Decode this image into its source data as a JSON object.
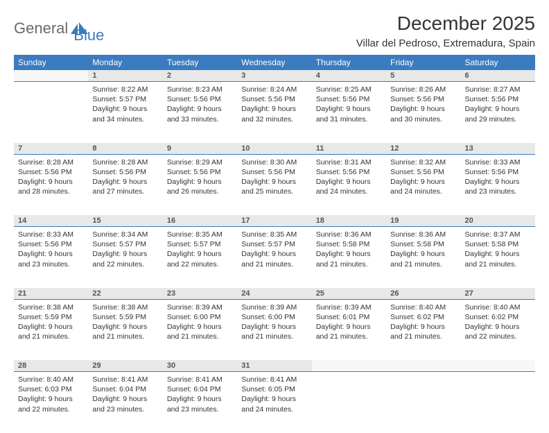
{
  "logo": {
    "word1": "General",
    "word2": "Blue",
    "word1_color": "#6a6a6a",
    "word2_color": "#3b7bbf"
  },
  "title": "December 2025",
  "location": "Villar del Pedroso, Extremadura, Spain",
  "header_bg": "#3b7bbf",
  "daynum_bg": "#e8e8e8",
  "daynum_border": "#3b7bbf",
  "weekdays": [
    "Sunday",
    "Monday",
    "Tuesday",
    "Wednesday",
    "Thursday",
    "Friday",
    "Saturday"
  ],
  "weeks": [
    {
      "nums": [
        "",
        "1",
        "2",
        "3",
        "4",
        "5",
        "6"
      ],
      "cells": [
        null,
        {
          "sr": "Sunrise: 8:22 AM",
          "ss": "Sunset: 5:57 PM",
          "d1": "Daylight: 9 hours",
          "d2": "and 34 minutes."
        },
        {
          "sr": "Sunrise: 8:23 AM",
          "ss": "Sunset: 5:56 PM",
          "d1": "Daylight: 9 hours",
          "d2": "and 33 minutes."
        },
        {
          "sr": "Sunrise: 8:24 AM",
          "ss": "Sunset: 5:56 PM",
          "d1": "Daylight: 9 hours",
          "d2": "and 32 minutes."
        },
        {
          "sr": "Sunrise: 8:25 AM",
          "ss": "Sunset: 5:56 PM",
          "d1": "Daylight: 9 hours",
          "d2": "and 31 minutes."
        },
        {
          "sr": "Sunrise: 8:26 AM",
          "ss": "Sunset: 5:56 PM",
          "d1": "Daylight: 9 hours",
          "d2": "and 30 minutes."
        },
        {
          "sr": "Sunrise: 8:27 AM",
          "ss": "Sunset: 5:56 PM",
          "d1": "Daylight: 9 hours",
          "d2": "and 29 minutes."
        }
      ]
    },
    {
      "nums": [
        "7",
        "8",
        "9",
        "10",
        "11",
        "12",
        "13"
      ],
      "cells": [
        {
          "sr": "Sunrise: 8:28 AM",
          "ss": "Sunset: 5:56 PM",
          "d1": "Daylight: 9 hours",
          "d2": "and 28 minutes."
        },
        {
          "sr": "Sunrise: 8:28 AM",
          "ss": "Sunset: 5:56 PM",
          "d1": "Daylight: 9 hours",
          "d2": "and 27 minutes."
        },
        {
          "sr": "Sunrise: 8:29 AM",
          "ss": "Sunset: 5:56 PM",
          "d1": "Daylight: 9 hours",
          "d2": "and 26 minutes."
        },
        {
          "sr": "Sunrise: 8:30 AM",
          "ss": "Sunset: 5:56 PM",
          "d1": "Daylight: 9 hours",
          "d2": "and 25 minutes."
        },
        {
          "sr": "Sunrise: 8:31 AM",
          "ss": "Sunset: 5:56 PM",
          "d1": "Daylight: 9 hours",
          "d2": "and 24 minutes."
        },
        {
          "sr": "Sunrise: 8:32 AM",
          "ss": "Sunset: 5:56 PM",
          "d1": "Daylight: 9 hours",
          "d2": "and 24 minutes."
        },
        {
          "sr": "Sunrise: 8:33 AM",
          "ss": "Sunset: 5:56 PM",
          "d1": "Daylight: 9 hours",
          "d2": "and 23 minutes."
        }
      ]
    },
    {
      "nums": [
        "14",
        "15",
        "16",
        "17",
        "18",
        "19",
        "20"
      ],
      "cells": [
        {
          "sr": "Sunrise: 8:33 AM",
          "ss": "Sunset: 5:56 PM",
          "d1": "Daylight: 9 hours",
          "d2": "and 23 minutes."
        },
        {
          "sr": "Sunrise: 8:34 AM",
          "ss": "Sunset: 5:57 PM",
          "d1": "Daylight: 9 hours",
          "d2": "and 22 minutes."
        },
        {
          "sr": "Sunrise: 8:35 AM",
          "ss": "Sunset: 5:57 PM",
          "d1": "Daylight: 9 hours",
          "d2": "and 22 minutes."
        },
        {
          "sr": "Sunrise: 8:35 AM",
          "ss": "Sunset: 5:57 PM",
          "d1": "Daylight: 9 hours",
          "d2": "and 21 minutes."
        },
        {
          "sr": "Sunrise: 8:36 AM",
          "ss": "Sunset: 5:58 PM",
          "d1": "Daylight: 9 hours",
          "d2": "and 21 minutes."
        },
        {
          "sr": "Sunrise: 8:36 AM",
          "ss": "Sunset: 5:58 PM",
          "d1": "Daylight: 9 hours",
          "d2": "and 21 minutes."
        },
        {
          "sr": "Sunrise: 8:37 AM",
          "ss": "Sunset: 5:58 PM",
          "d1": "Daylight: 9 hours",
          "d2": "and 21 minutes."
        }
      ]
    },
    {
      "nums": [
        "21",
        "22",
        "23",
        "24",
        "25",
        "26",
        "27"
      ],
      "cells": [
        {
          "sr": "Sunrise: 8:38 AM",
          "ss": "Sunset: 5:59 PM",
          "d1": "Daylight: 9 hours",
          "d2": "and 21 minutes."
        },
        {
          "sr": "Sunrise: 8:38 AM",
          "ss": "Sunset: 5:59 PM",
          "d1": "Daylight: 9 hours",
          "d2": "and 21 minutes."
        },
        {
          "sr": "Sunrise: 8:39 AM",
          "ss": "Sunset: 6:00 PM",
          "d1": "Daylight: 9 hours",
          "d2": "and 21 minutes."
        },
        {
          "sr": "Sunrise: 8:39 AM",
          "ss": "Sunset: 6:00 PM",
          "d1": "Daylight: 9 hours",
          "d2": "and 21 minutes."
        },
        {
          "sr": "Sunrise: 8:39 AM",
          "ss": "Sunset: 6:01 PM",
          "d1": "Daylight: 9 hours",
          "d2": "and 21 minutes."
        },
        {
          "sr": "Sunrise: 8:40 AM",
          "ss": "Sunset: 6:02 PM",
          "d1": "Daylight: 9 hours",
          "d2": "and 21 minutes."
        },
        {
          "sr": "Sunrise: 8:40 AM",
          "ss": "Sunset: 6:02 PM",
          "d1": "Daylight: 9 hours",
          "d2": "and 22 minutes."
        }
      ]
    },
    {
      "nums": [
        "28",
        "29",
        "30",
        "31",
        "",
        "",
        ""
      ],
      "cells": [
        {
          "sr": "Sunrise: 8:40 AM",
          "ss": "Sunset: 6:03 PM",
          "d1": "Daylight: 9 hours",
          "d2": "and 22 minutes."
        },
        {
          "sr": "Sunrise: 8:41 AM",
          "ss": "Sunset: 6:04 PM",
          "d1": "Daylight: 9 hours",
          "d2": "and 23 minutes."
        },
        {
          "sr": "Sunrise: 8:41 AM",
          "ss": "Sunset: 6:04 PM",
          "d1": "Daylight: 9 hours",
          "d2": "and 23 minutes."
        },
        {
          "sr": "Sunrise: 8:41 AM",
          "ss": "Sunset: 6:05 PM",
          "d1": "Daylight: 9 hours",
          "d2": "and 24 minutes."
        },
        null,
        null,
        null
      ]
    }
  ]
}
